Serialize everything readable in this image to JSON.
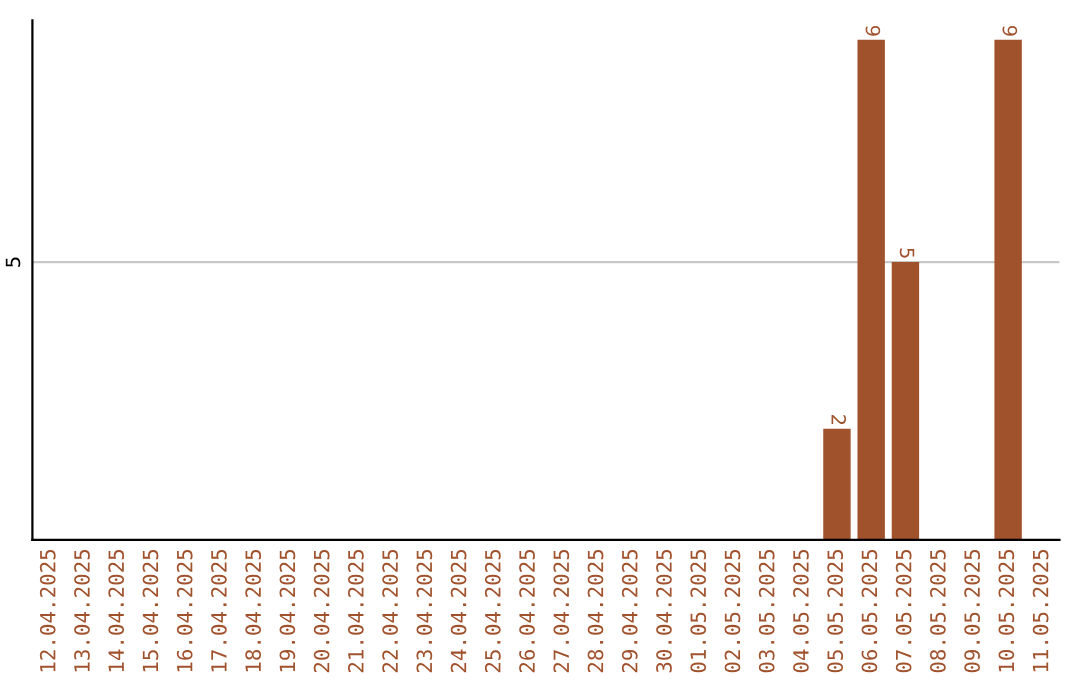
{
  "chart_data": {
    "type": "bar",
    "categories": [
      "12.04.2025",
      "13.04.2025",
      "14.04.2025",
      "15.04.2025",
      "16.04.2025",
      "17.04.2025",
      "18.04.2025",
      "19.04.2025",
      "20.04.2025",
      "21.04.2025",
      "22.04.2025",
      "23.04.2025",
      "24.04.2025",
      "25.04.2025",
      "26.04.2025",
      "27.04.2025",
      "28.04.2025",
      "29.04.2025",
      "30.04.2025",
      "01.05.2025",
      "02.05.2025",
      "03.05.2025",
      "04.05.2025",
      "05.05.2025",
      "06.05.2025",
      "07.05.2025",
      "08.05.2025",
      "09.05.2025",
      "10.05.2025",
      "11.05.2025"
    ],
    "values": [
      null,
      null,
      null,
      null,
      null,
      null,
      null,
      null,
      null,
      null,
      null,
      null,
      null,
      null,
      null,
      null,
      null,
      null,
      null,
      null,
      null,
      null,
      null,
      2,
      9,
      5,
      null,
      null,
      9,
      null
    ],
    "data_labels": true,
    "color": "#a0522d",
    "ylim": [
      0,
      9.35
    ],
    "yticks": [
      5
    ],
    "grid": "y"
  }
}
